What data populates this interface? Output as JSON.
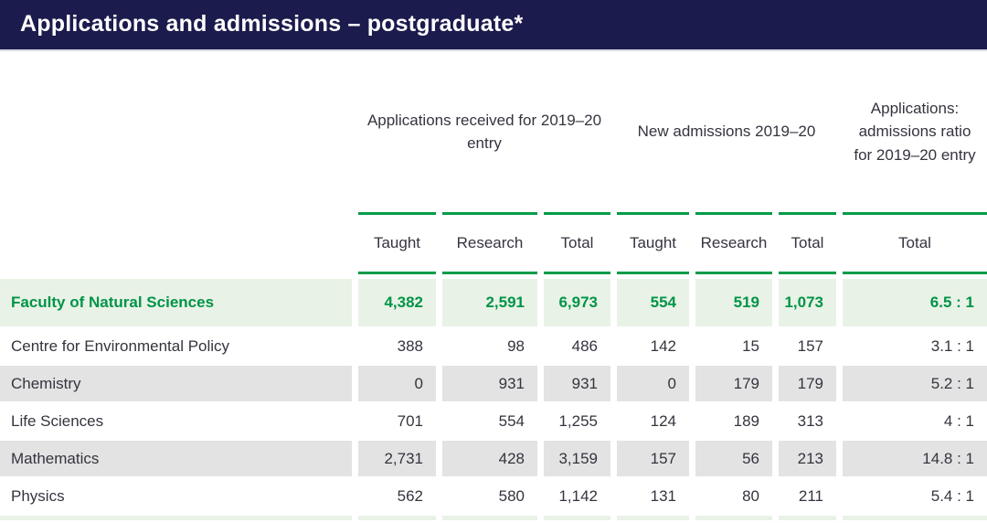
{
  "title": "Applications and admissions – postgraduate*",
  "colors": {
    "navy_header": "#1b1b4d",
    "accent_green": "#009c48",
    "highlight_row_bg": "#e9f2e6",
    "alt_row_bg": "#e3e3e3",
    "text_dark": "#35343f"
  },
  "table": {
    "group_headers": [
      {
        "label": "Applications received for 2019–20 entry",
        "columns": 3
      },
      {
        "label": "New admissions 2019–20",
        "columns": 3
      },
      {
        "label": "Applications: admissions ratio for 2019–20 entry",
        "columns": 1
      }
    ],
    "sub_headers": [
      "Taught",
      "Research",
      "Total",
      "Taught",
      "Research",
      "Total",
      "Total"
    ],
    "rows": [
      {
        "label": "Faculty of Natural Sciences",
        "highlight": true,
        "values": [
          "4,382",
          "2,591",
          "6,973",
          "554",
          "519",
          "1,073",
          "6.5 : 1"
        ]
      },
      {
        "label": "Centre for Environmental Policy",
        "highlight": false,
        "values": [
          "388",
          "98",
          "486",
          "142",
          "15",
          "157",
          "3.1 : 1"
        ]
      },
      {
        "label": "Chemistry",
        "highlight": false,
        "values": [
          "0",
          "931",
          "931",
          "0",
          "179",
          "179",
          "5.2 : 1"
        ]
      },
      {
        "label": "Life Sciences",
        "highlight": false,
        "values": [
          "701",
          "554",
          "1,255",
          "124",
          "189",
          "313",
          "4 : 1"
        ]
      },
      {
        "label": "Mathematics",
        "highlight": false,
        "values": [
          "2,731",
          "428",
          "3,159",
          "157",
          "56",
          "213",
          "14.8 : 1"
        ]
      },
      {
        "label": "Physics",
        "highlight": false,
        "values": [
          "562",
          "580",
          "1,142",
          "131",
          "80",
          "211",
          "5.4 : 1"
        ]
      }
    ]
  }
}
